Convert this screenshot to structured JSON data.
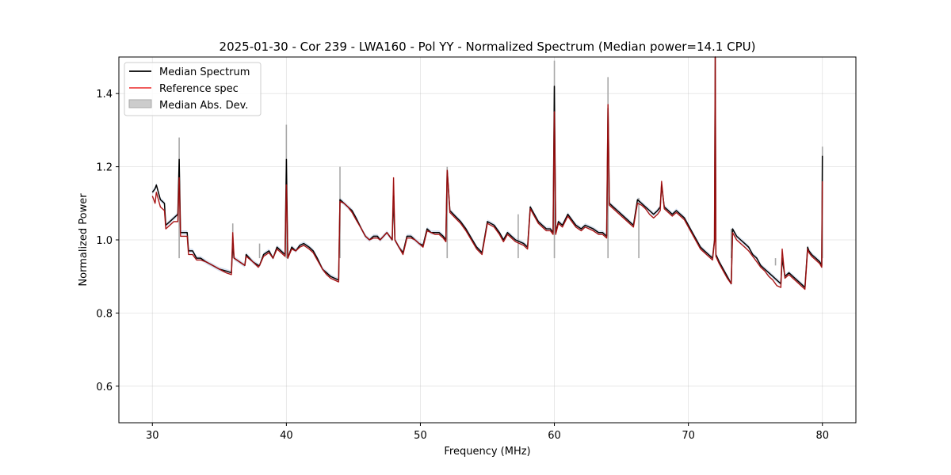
{
  "chart_data": {
    "type": "line",
    "title": "2025-01-30 - Cor 239 - LWA160 - Pol YY - Normalized Spectrum (Median power=14.1 CPU)",
    "xlabel": "Frequency (MHz)",
    "ylabel": "Normalized Power",
    "xlim": [
      27.5,
      82.5
    ],
    "ylim": [
      0.5,
      1.5
    ],
    "xticks": [
      30,
      40,
      50,
      60,
      70,
      80
    ],
    "yticks": [
      0.6,
      0.8,
      1.0,
      1.2,
      1.4
    ],
    "grid": true,
    "legend_position": "top-left",
    "colors": {
      "median": "#000000",
      "reference": "#ee4444",
      "reference_dark": "#8b0000",
      "mad": "#a8a8a8",
      "mad_blue": "#8fb0d8"
    },
    "legend": [
      {
        "label": "Median Spectrum",
        "kind": "line",
        "color": "#000000"
      },
      {
        "label": "Reference spec",
        "kind": "line",
        "color": "#ee4444"
      },
      {
        "label": "Median Abs. Dev.",
        "kind": "patch",
        "color": "#cccccc"
      }
    ],
    "series": [
      {
        "name": "Median Spectrum",
        "x": [
          30.0,
          30.2,
          30.3,
          30.6,
          30.9,
          31.0,
          31.3,
          31.6,
          31.9,
          32.0,
          32.1,
          32.4,
          32.6,
          32.7,
          33.0,
          33.3,
          33.6,
          34.0,
          34.5,
          35.0,
          35.5,
          35.9,
          36.0,
          36.1,
          36.5,
          36.9,
          37.0,
          37.5,
          37.9,
          38.0,
          38.3,
          38.7,
          39.0,
          39.3,
          39.6,
          39.9,
          40.0,
          40.1,
          40.4,
          40.7,
          41.0,
          41.3,
          41.7,
          42.0,
          42.3,
          42.7,
          43.0,
          43.3,
          43.9,
          44.0,
          44.3,
          44.6,
          44.9,
          45.2,
          45.6,
          45.9,
          46.2,
          46.5,
          46.8,
          47.0,
          47.5,
          47.9,
          48.0,
          48.1,
          48.4,
          48.7,
          49.0,
          49.3,
          49.6,
          49.9,
          50.2,
          50.5,
          50.8,
          51.1,
          51.4,
          51.7,
          51.9,
          52.0,
          52.2,
          52.6,
          53.0,
          53.4,
          53.8,
          54.2,
          54.6,
          55.0,
          55.5,
          55.9,
          56.2,
          56.5,
          56.8,
          57.1,
          57.4,
          57.7,
          58.0,
          58.2,
          58.5,
          58.8,
          59.1,
          59.4,
          59.7,
          59.9,
          60.0,
          60.1,
          60.3,
          60.6,
          61.0,
          61.3,
          61.6,
          62.0,
          62.3,
          62.6,
          62.9,
          63.3,
          63.6,
          63.9,
          64.0,
          64.1,
          64.4,
          64.7,
          65.0,
          65.3,
          65.6,
          65.9,
          66.2,
          66.5,
          66.8,
          67.1,
          67.4,
          67.7,
          67.9,
          68.0,
          68.2,
          68.5,
          68.8,
          69.1,
          69.4,
          69.7,
          70.0,
          70.3,
          70.6,
          70.9,
          71.2,
          71.5,
          71.8,
          71.95,
          72.0,
          72.05,
          72.3,
          72.6,
          72.9,
          73.2,
          73.3,
          73.6,
          73.9,
          74.2,
          74.5,
          74.8,
          75.1,
          75.4,
          75.7,
          76.0,
          76.3,
          76.6,
          76.9,
          77.0,
          77.2,
          77.5,
          77.8,
          78.1,
          78.4,
          78.7,
          78.9,
          79.0,
          79.2,
          79.5,
          79.8,
          79.95,
          80.0
        ],
        "y": [
          1.13,
          1.14,
          1.15,
          1.11,
          1.1,
          1.04,
          1.05,
          1.06,
          1.07,
          1.22,
          1.02,
          1.02,
          1.02,
          0.97,
          0.97,
          0.95,
          0.95,
          0.94,
          0.93,
          0.92,
          0.915,
          0.91,
          0.99,
          0.95,
          0.94,
          0.93,
          0.96,
          0.94,
          0.93,
          0.93,
          0.96,
          0.97,
          0.95,
          0.98,
          0.97,
          0.96,
          1.22,
          0.95,
          0.98,
          0.97,
          0.985,
          0.99,
          0.98,
          0.97,
          0.95,
          0.92,
          0.91,
          0.9,
          0.89,
          1.11,
          1.1,
          1.09,
          1.08,
          1.06,
          1.03,
          1.01,
          1.0,
          1.01,
          1.01,
          1.0,
          1.02,
          1.0,
          1.12,
          1.0,
          0.98,
          0.965,
          1.01,
          1.01,
          1.0,
          0.99,
          0.985,
          1.03,
          1.02,
          1.02,
          1.02,
          1.01,
          1.0,
          1.19,
          1.08,
          1.065,
          1.05,
          1.03,
          1.005,
          0.98,
          0.965,
          1.05,
          1.04,
          1.02,
          1.0,
          1.02,
          1.01,
          1.0,
          0.995,
          0.99,
          0.98,
          1.09,
          1.07,
          1.05,
          1.04,
          1.03,
          1.03,
          1.02,
          1.42,
          1.02,
          1.05,
          1.04,
          1.07,
          1.055,
          1.04,
          1.03,
          1.04,
          1.035,
          1.03,
          1.02,
          1.02,
          1.01,
          1.36,
          1.1,
          1.09,
          1.08,
          1.07,
          1.06,
          1.05,
          1.04,
          1.11,
          1.1,
          1.09,
          1.08,
          1.07,
          1.08,
          1.09,
          1.15,
          1.09,
          1.08,
          1.07,
          1.08,
          1.07,
          1.06,
          1.04,
          1.02,
          1.0,
          0.98,
          0.97,
          0.96,
          0.95,
          1.0,
          1.5,
          0.96,
          0.94,
          0.92,
          0.9,
          0.88,
          1.03,
          1.01,
          1.0,
          0.99,
          0.98,
          0.96,
          0.95,
          0.93,
          0.92,
          0.91,
          0.9,
          0.89,
          0.88,
          0.95,
          0.9,
          0.91,
          0.9,
          0.89,
          0.88,
          0.87,
          0.98,
          0.97,
          0.96,
          0.95,
          0.94,
          0.93,
          1.23
        ]
      },
      {
        "name": "Reference spec",
        "x": [
          30.0,
          30.2,
          30.3,
          30.6,
          30.9,
          31.0,
          31.3,
          31.6,
          31.9,
          32.0,
          32.1,
          32.4,
          32.6,
          32.7,
          33.0,
          33.3,
          33.6,
          34.0,
          34.5,
          35.0,
          35.5,
          35.9,
          36.0,
          36.1,
          36.5,
          36.9,
          37.0,
          37.5,
          37.9,
          38.0,
          38.3,
          38.7,
          39.0,
          39.3,
          39.6,
          39.9,
          40.0,
          40.1,
          40.4,
          40.7,
          41.0,
          41.3,
          41.7,
          42.0,
          42.3,
          42.7,
          43.0,
          43.3,
          43.9,
          44.0,
          44.3,
          44.6,
          44.9,
          45.2,
          45.6,
          45.9,
          46.2,
          46.5,
          46.8,
          47.0,
          47.5,
          47.9,
          48.0,
          48.1,
          48.4,
          48.7,
          49.0,
          49.3,
          49.6,
          49.9,
          50.2,
          50.5,
          50.8,
          51.1,
          51.4,
          51.7,
          51.9,
          52.0,
          52.2,
          52.6,
          53.0,
          53.4,
          53.8,
          54.2,
          54.6,
          55.0,
          55.5,
          55.9,
          56.2,
          56.5,
          56.8,
          57.1,
          57.4,
          57.7,
          58.0,
          58.2,
          58.5,
          58.8,
          59.1,
          59.4,
          59.7,
          59.9,
          60.0,
          60.1,
          60.3,
          60.6,
          61.0,
          61.3,
          61.6,
          62.0,
          62.3,
          62.6,
          62.9,
          63.3,
          63.6,
          63.9,
          64.0,
          64.1,
          64.4,
          64.7,
          65.0,
          65.3,
          65.6,
          65.9,
          66.2,
          66.5,
          66.8,
          67.1,
          67.4,
          67.7,
          67.9,
          68.0,
          68.2,
          68.5,
          68.8,
          69.1,
          69.4,
          69.7,
          70.0,
          70.3,
          70.6,
          70.9,
          71.2,
          71.5,
          71.8,
          71.95,
          72.0,
          72.05,
          72.3,
          72.6,
          72.9,
          73.2,
          73.3,
          73.6,
          73.9,
          74.2,
          74.5,
          74.8,
          75.1,
          75.4,
          75.7,
          76.0,
          76.3,
          76.6,
          76.9,
          77.0,
          77.2,
          77.5,
          77.8,
          78.1,
          78.4,
          78.7,
          78.9,
          79.0,
          79.2,
          79.5,
          79.8,
          79.95,
          80.0
        ],
        "y": [
          1.12,
          1.1,
          1.13,
          1.09,
          1.08,
          1.03,
          1.04,
          1.05,
          1.05,
          1.17,
          1.01,
          1.01,
          1.01,
          0.96,
          0.96,
          0.945,
          0.945,
          0.94,
          0.93,
          0.92,
          0.91,
          0.905,
          1.02,
          0.95,
          0.94,
          0.93,
          0.955,
          0.94,
          0.925,
          0.93,
          0.955,
          0.965,
          0.95,
          0.975,
          0.965,
          0.955,
          1.15,
          0.95,
          0.975,
          0.97,
          0.98,
          0.985,
          0.975,
          0.965,
          0.945,
          0.92,
          0.905,
          0.895,
          0.885,
          1.105,
          1.1,
          1.09,
          1.075,
          1.055,
          1.03,
          1.01,
          1.0,
          1.005,
          1.005,
          1.0,
          1.02,
          1.0,
          1.17,
          1.0,
          0.98,
          0.96,
          1.005,
          1.005,
          1.0,
          0.99,
          0.98,
          1.025,
          1.02,
          1.015,
          1.015,
          1.005,
          0.995,
          1.19,
          1.075,
          1.06,
          1.045,
          1.025,
          1.0,
          0.975,
          0.96,
          1.045,
          1.035,
          1.015,
          0.995,
          1.015,
          1.005,
          0.995,
          0.99,
          0.985,
          0.975,
          1.085,
          1.065,
          1.045,
          1.035,
          1.025,
          1.025,
          1.015,
          1.35,
          1.015,
          1.045,
          1.035,
          1.065,
          1.05,
          1.035,
          1.025,
          1.035,
          1.03,
          1.025,
          1.015,
          1.015,
          1.005,
          1.37,
          1.095,
          1.085,
          1.075,
          1.065,
          1.055,
          1.045,
          1.035,
          1.1,
          1.095,
          1.085,
          1.07,
          1.06,
          1.07,
          1.08,
          1.16,
          1.085,
          1.075,
          1.065,
          1.075,
          1.065,
          1.055,
          1.035,
          1.015,
          0.995,
          0.975,
          0.965,
          0.955,
          0.945,
          0.995,
          1.5,
          0.955,
          0.935,
          0.915,
          0.895,
          0.88,
          1.02,
          1.0,
          0.99,
          0.98,
          0.97,
          0.955,
          0.94,
          0.925,
          0.915,
          0.9,
          0.89,
          0.875,
          0.87,
          0.975,
          0.895,
          0.905,
          0.895,
          0.885,
          0.875,
          0.865,
          0.975,
          0.965,
          0.955,
          0.945,
          0.935,
          0.925,
          1.16
        ]
      },
      {
        "name": "Median Abs. Dev.",
        "kind": "band",
        "x": [
          32.0,
          36.0,
          38.0,
          40.0,
          44.0,
          52.0,
          57.3,
          60.0,
          64.0,
          66.3,
          73.2,
          76.5,
          80.0
        ],
        "y": [
          1.28,
          1.045,
          0.99,
          1.315,
          1.2,
          1.2,
          1.07,
          1.49,
          1.445,
          1.115,
          1.03,
          0.93,
          1.255
        ]
      }
    ]
  }
}
